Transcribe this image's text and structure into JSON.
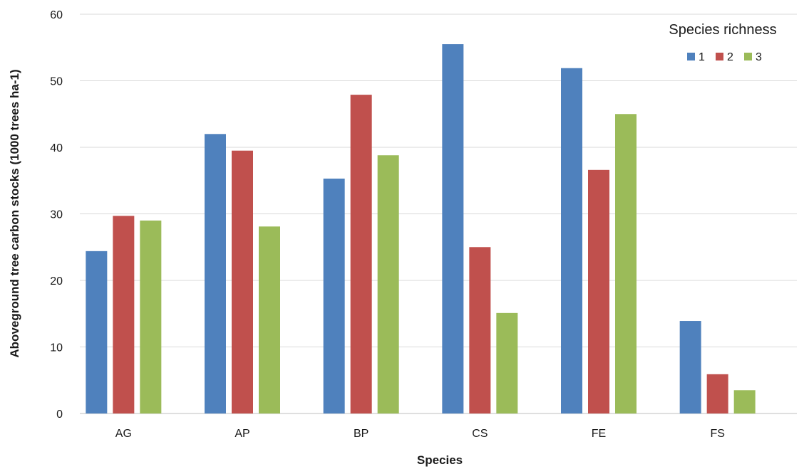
{
  "chart_data": {
    "type": "bar",
    "xlabel": "Species",
    "ylabel": "Aboveground tree carbon stocks (1000 trees ha-1)",
    "ylim": [
      0,
      60
    ],
    "yticks": [
      0,
      10,
      20,
      30,
      40,
      50,
      60
    ],
    "grid": true,
    "legend": {
      "title": "Species richness",
      "placement": "top-right"
    },
    "categories": [
      "AG",
      "AP",
      "BP",
      "CS",
      "FE",
      "FS"
    ],
    "series": [
      {
        "name": "1",
        "color": "#4f81bd",
        "values": [
          24.4,
          42.0,
          35.3,
          55.5,
          51.9,
          13.9
        ]
      },
      {
        "name": "2",
        "color": "#c0504d",
        "values": [
          29.7,
          39.5,
          47.9,
          25.0,
          36.6,
          5.9
        ]
      },
      {
        "name": "3",
        "color": "#9bbb59",
        "values": [
          29.0,
          28.1,
          38.8,
          15.1,
          45.0,
          3.5
        ]
      }
    ]
  }
}
